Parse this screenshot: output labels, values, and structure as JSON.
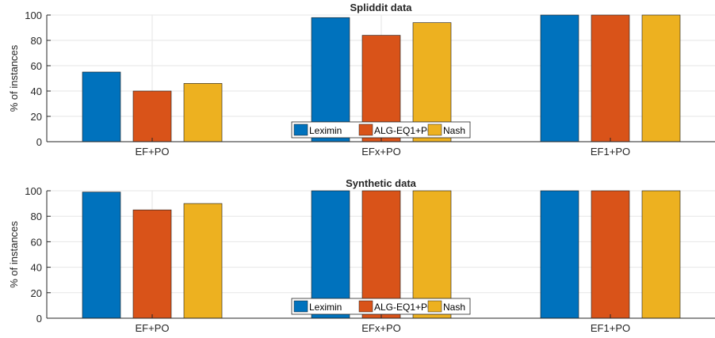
{
  "chart_data": [
    {
      "type": "bar",
      "title": "Spliddit data",
      "ylabel": "% of instances",
      "xlabel": "",
      "ylim": [
        0,
        100
      ],
      "yticks": [
        0,
        20,
        40,
        60,
        80,
        100
      ],
      "grid": true,
      "legend_position": "bottom-center",
      "categories": [
        "EF+PO",
        "EFx+PO",
        "EF1+PO"
      ],
      "series": [
        {
          "name": "Leximin",
          "color": "#0072BD",
          "values": [
            55,
            98,
            100
          ]
        },
        {
          "name": "ALG-EQ1+PO",
          "color": "#D95319",
          "values": [
            40,
            84,
            100
          ]
        },
        {
          "name": "Nash",
          "color": "#EDB120",
          "values": [
            46,
            94,
            100
          ]
        }
      ]
    },
    {
      "type": "bar",
      "title": "Synthetic data",
      "ylabel": "% of instances",
      "xlabel": "",
      "ylim": [
        0,
        100
      ],
      "yticks": [
        0,
        20,
        40,
        60,
        80,
        100
      ],
      "grid": true,
      "legend_position": "bottom-center",
      "categories": [
        "EF+PO",
        "EFx+PO",
        "EF1+PO"
      ],
      "series": [
        {
          "name": "Leximin",
          "color": "#0072BD",
          "values": [
            99,
            100,
            100
          ]
        },
        {
          "name": "ALG-EQ1+PO",
          "color": "#D95319",
          "values": [
            85,
            100,
            100
          ]
        },
        {
          "name": "Nash",
          "color": "#EDB120",
          "values": [
            90,
            100,
            100
          ]
        }
      ]
    }
  ]
}
